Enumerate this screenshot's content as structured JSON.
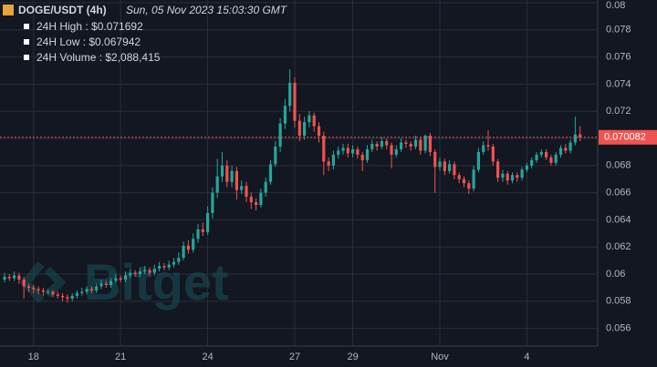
{
  "chart_data": {
    "type": "candlestick",
    "title": "DOGE/USDT (4h)",
    "subtitle": "Sun, 05 Nov 2023 15:03:30 GMT",
    "stats": [
      "24H High : $0.071692",
      "24H Low : $0.067942",
      "24H Volume : $2,088,415"
    ],
    "watermark": "Bitget",
    "up_color": "#26a69a",
    "down_color": "#ef5350",
    "grid": true,
    "last_price": 0.070082,
    "ylim": [
      0.0547,
      0.08
    ],
    "yticks": [
      0.056,
      0.058,
      0.06,
      0.062,
      0.064,
      0.066,
      0.068,
      0.07,
      0.072,
      0.074,
      0.076,
      0.078,
      0.08
    ],
    "xlim": [
      -0.94,
      122.64
    ],
    "xticks": [
      {
        "value": 6,
        "label": "18"
      },
      {
        "value": 24,
        "label": "21"
      },
      {
        "value": 42,
        "label": "24"
      },
      {
        "value": 60,
        "label": "27"
      },
      {
        "value": 72,
        "label": "29"
      },
      {
        "value": 90,
        "label": "Nov"
      },
      {
        "value": 108,
        "label": "4"
      }
    ],
    "open": [
      0.0596,
      0.0598,
      0.0597,
      0.0599,
      0.0596,
      0.0591,
      0.059,
      0.0589,
      0.0588,
      0.0587,
      0.0587,
      0.0585,
      0.0584,
      0.0583,
      0.0582,
      0.0584,
      0.0586,
      0.0587,
      0.0589,
      0.0588,
      0.0591,
      0.0593,
      0.0592,
      0.0595,
      0.0597,
      0.0596,
      0.0599,
      0.0601,
      0.06,
      0.0602,
      0.0603,
      0.0601,
      0.0604,
      0.0606,
      0.0605,
      0.0607,
      0.0609,
      0.0612,
      0.0621,
      0.0618,
      0.0626,
      0.0633,
      0.0631,
      0.0645,
      0.066,
      0.0672,
      0.068,
      0.0668,
      0.0676,
      0.0662,
      0.0665,
      0.0657,
      0.0653,
      0.0651,
      0.066,
      0.0668,
      0.0681,
      0.0694,
      0.0711,
      0.0724,
      0.0741,
      0.0713,
      0.0702,
      0.0712,
      0.0717,
      0.0709,
      0.0702,
      0.0683,
      0.068,
      0.0688,
      0.0691,
      0.0693,
      0.0689,
      0.0692,
      0.0688,
      0.0684,
      0.0692,
      0.0696,
      0.0694,
      0.0698,
      0.0695,
      0.0688,
      0.0692,
      0.0697,
      0.0696,
      0.0694,
      0.0699,
      0.0691,
      0.0702,
      0.069,
      0.0679,
      0.0683,
      0.0676,
      0.0681,
      0.0673,
      0.067,
      0.0667,
      0.0663,
      0.0677,
      0.069,
      0.0695,
      0.0694,
      0.0683,
      0.0671,
      0.0674,
      0.0669,
      0.0673,
      0.0671,
      0.0677,
      0.068,
      0.0684,
      0.0688,
      0.069,
      0.0686,
      0.0682,
      0.0688,
      0.0693,
      0.0691,
      0.0697,
      0.0703
    ],
    "high": [
      0.0601,
      0.06,
      0.0602,
      0.0601,
      0.0598,
      0.0593,
      0.0592,
      0.0591,
      0.059,
      0.0589,
      0.0588,
      0.0587,
      0.0586,
      0.0585,
      0.0586,
      0.0588,
      0.059,
      0.0591,
      0.0591,
      0.0593,
      0.0596,
      0.0595,
      0.0597,
      0.06,
      0.0599,
      0.0602,
      0.0604,
      0.0603,
      0.0605,
      0.0606,
      0.0605,
      0.0607,
      0.0609,
      0.0608,
      0.061,
      0.0612,
      0.0616,
      0.0624,
      0.0625,
      0.063,
      0.0637,
      0.0638,
      0.065,
      0.0664,
      0.0685,
      0.069,
      0.0684,
      0.068,
      0.0679,
      0.0669,
      0.0668,
      0.066,
      0.0656,
      0.0663,
      0.0671,
      0.0684,
      0.0698,
      0.0715,
      0.0729,
      0.0751,
      0.0745,
      0.0718,
      0.0716,
      0.072,
      0.0719,
      0.0712,
      0.0705,
      0.0686,
      0.0691,
      0.0694,
      0.0696,
      0.0696,
      0.0695,
      0.0694,
      0.069,
      0.0695,
      0.0699,
      0.0698,
      0.0701,
      0.07,
      0.0697,
      0.0695,
      0.07,
      0.0699,
      0.0698,
      0.0702,
      0.0701,
      0.0703,
      0.0704,
      0.0692,
      0.0686,
      0.0685,
      0.0684,
      0.0683,
      0.0675,
      0.0672,
      0.0669,
      0.068,
      0.0693,
      0.0698,
      0.0706,
      0.0696,
      0.0685,
      0.0677,
      0.0676,
      0.0675,
      0.0675,
      0.0679,
      0.0682,
      0.0686,
      0.069,
      0.0692,
      0.0692,
      0.0688,
      0.069,
      0.0695,
      0.0696,
      0.0699,
      0.0716,
      0.0709
    ],
    "low": [
      0.0594,
      0.0595,
      0.0595,
      0.0593,
      0.0582,
      0.0587,
      0.0586,
      0.0585,
      0.0584,
      0.0585,
      0.0583,
      0.0582,
      0.058,
      0.0579,
      0.058,
      0.0582,
      0.0584,
      0.0585,
      0.0586,
      0.0586,
      0.0589,
      0.059,
      0.059,
      0.0593,
      0.0594,
      0.0594,
      0.0597,
      0.0598,
      0.0598,
      0.06,
      0.0599,
      0.0599,
      0.0602,
      0.0603,
      0.0603,
      0.0605,
      0.0607,
      0.061,
      0.0615,
      0.0616,
      0.0623,
      0.0628,
      0.0629,
      0.0641,
      0.0656,
      0.0668,
      0.0664,
      0.0664,
      0.0655,
      0.0659,
      0.0653,
      0.0648,
      0.0647,
      0.0649,
      0.0657,
      0.0666,
      0.0679,
      0.069,
      0.0707,
      0.072,
      0.0708,
      0.0698,
      0.0699,
      0.0708,
      0.0705,
      0.0697,
      0.0673,
      0.0676,
      0.0677,
      0.0685,
      0.0688,
      0.0686,
      0.0686,
      0.0685,
      0.0676,
      0.0682,
      0.069,
      0.0691,
      0.0692,
      0.0692,
      0.0678,
      0.0686,
      0.069,
      0.0693,
      0.0691,
      0.0692,
      0.0688,
      0.0689,
      0.0687,
      0.066,
      0.0676,
      0.0673,
      0.0674,
      0.067,
      0.0667,
      0.0664,
      0.0659,
      0.0661,
      0.0675,
      0.0688,
      0.0691,
      0.068,
      0.0668,
      0.0668,
      0.0666,
      0.0667,
      0.0668,
      0.0669,
      0.0675,
      0.0678,
      0.0682,
      0.0686,
      0.0684,
      0.068,
      0.068,
      0.0686,
      0.0689,
      0.0689,
      0.0695,
      0.0698
    ],
    "close": [
      0.0598,
      0.0597,
      0.0599,
      0.0596,
      0.0591,
      0.059,
      0.0589,
      0.0588,
      0.0587,
      0.0587,
      0.0585,
      0.0584,
      0.0583,
      0.0582,
      0.0584,
      0.0586,
      0.0587,
      0.0589,
      0.0588,
      0.0591,
      0.0593,
      0.0592,
      0.0595,
      0.0597,
      0.0596,
      0.0599,
      0.0601,
      0.06,
      0.0602,
      0.0603,
      0.0601,
      0.0604,
      0.0606,
      0.0605,
      0.0607,
      0.0609,
      0.0612,
      0.0621,
      0.0618,
      0.0626,
      0.0633,
      0.0631,
      0.0645,
      0.066,
      0.0672,
      0.068,
      0.0668,
      0.0676,
      0.0662,
      0.0665,
      0.0657,
      0.0653,
      0.0651,
      0.066,
      0.0668,
      0.0681,
      0.0694,
      0.0711,
      0.0724,
      0.0741,
      0.0713,
      0.0702,
      0.0712,
      0.0717,
      0.0709,
      0.0702,
      0.0683,
      0.068,
      0.0688,
      0.0691,
      0.0693,
      0.0689,
      0.0692,
      0.0688,
      0.0684,
      0.0692,
      0.0696,
      0.0694,
      0.0698,
      0.0695,
      0.0688,
      0.0692,
      0.0697,
      0.0696,
      0.0694,
      0.0699,
      0.0691,
      0.0702,
      0.069,
      0.0679,
      0.0683,
      0.0676,
      0.0681,
      0.0673,
      0.067,
      0.0667,
      0.0663,
      0.0677,
      0.069,
      0.0695,
      0.0694,
      0.0683,
      0.0671,
      0.0674,
      0.0669,
      0.0673,
      0.0671,
      0.0677,
      0.068,
      0.0684,
      0.0688,
      0.069,
      0.0686,
      0.0682,
      0.0688,
      0.0693,
      0.0691,
      0.0697,
      0.0703,
      0.070082
    ]
  }
}
